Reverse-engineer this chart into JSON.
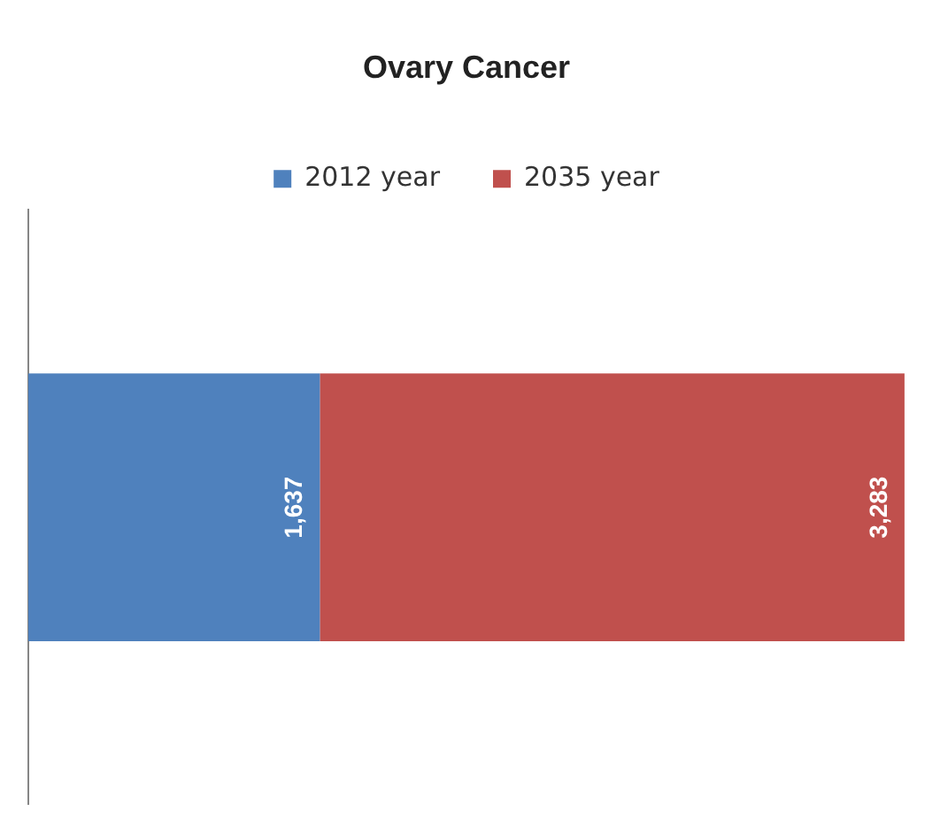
{
  "chart_data": {
    "type": "bar",
    "title": "Ovary Cancer",
    "orientation": "horizontal",
    "stacked": true,
    "categories": [
      null
    ],
    "legend": "top",
    "series": [
      {
        "name": "2012 year",
        "color": "#4f81bd",
        "values": [
          1637
        ],
        "value_labels": [
          "1,637"
        ]
      },
      {
        "name": "2035 year",
        "color": "#c0504d",
        "values": [
          3283
        ],
        "value_labels": [
          "3,283"
        ]
      }
    ]
  }
}
